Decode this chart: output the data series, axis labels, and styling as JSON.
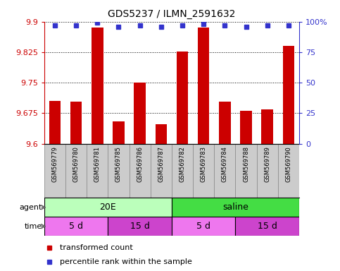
{
  "title": "GDS5237 / ILMN_2591632",
  "samples": [
    "GSM569779",
    "GSM569780",
    "GSM569781",
    "GSM569785",
    "GSM569786",
    "GSM569787",
    "GSM569782",
    "GSM569783",
    "GSM569784",
    "GSM569788",
    "GSM569789",
    "GSM569790"
  ],
  "bar_values": [
    9.705,
    9.703,
    9.885,
    9.655,
    9.75,
    9.648,
    9.826,
    9.885,
    9.703,
    9.68,
    9.685,
    9.84
  ],
  "percentile_values": [
    97,
    97,
    99,
    96,
    97,
    96,
    97,
    98,
    97,
    96,
    97,
    97
  ],
  "ymin": 9.6,
  "ymax": 9.9,
  "yticks": [
    9.6,
    9.675,
    9.75,
    9.825,
    9.9
  ],
  "ytick_labels": [
    "9.6",
    "9.675",
    "9.75",
    "9.825",
    "9.9"
  ],
  "right_yticks": [
    0,
    25,
    50,
    75,
    100
  ],
  "right_ytick_labels": [
    "0",
    "25",
    "50",
    "75",
    "100%"
  ],
  "bar_color": "#cc0000",
  "dot_color": "#3333cc",
  "agent_20E_color": "#bbffbb",
  "agent_saline_color": "#44dd44",
  "time_5d_color": "#ee77ee",
  "time_15d_color": "#cc44cc",
  "left_axis_color": "#cc0000",
  "right_axis_color": "#3333cc",
  "label_bg_color": "#cccccc",
  "label_border_color": "#888888"
}
